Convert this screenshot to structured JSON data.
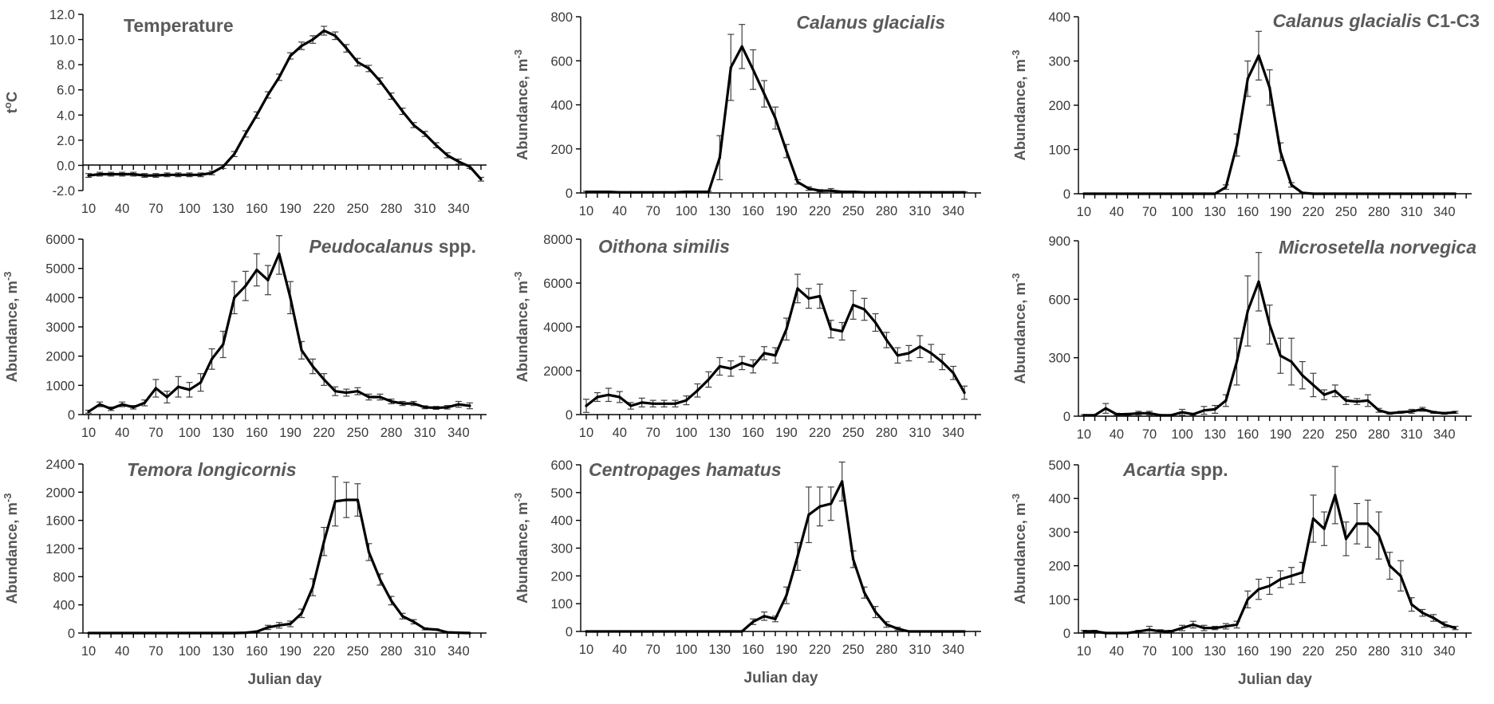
{
  "x_ticks": [
    10,
    40,
    70,
    100,
    130,
    160,
    190,
    220,
    250,
    280,
    310,
    340
  ],
  "xlabel": "Julian day",
  "chart_data": [
    {
      "type": "line",
      "title": "Temperature",
      "title_main": "Temperature",
      "title_suffix": "",
      "ylabel": "t°C",
      "ylabel_base": "t",
      "ylabel_sup": "o",
      "ylabel_rest": "C",
      "ylim": [
        -2,
        12
      ],
      "y_ticks": [
        "12.0",
        "10.0",
        "8.0",
        "6.0",
        "4.0",
        "2.0",
        "0.0",
        "-2.0"
      ],
      "y_tick_values": [
        12,
        10,
        8,
        6,
        4,
        2,
        0,
        -2
      ],
      "xlabel": "",
      "x": [
        10,
        20,
        30,
        40,
        50,
        60,
        70,
        80,
        90,
        100,
        110,
        120,
        130,
        140,
        150,
        160,
        170,
        180,
        190,
        200,
        210,
        220,
        230,
        240,
        250,
        260,
        270,
        280,
        290,
        300,
        310,
        320,
        330,
        340,
        350,
        360
      ],
      "values": [
        -0.8,
        -0.7,
        -0.7,
        -0.7,
        -0.7,
        -0.8,
        -0.8,
        -0.75,
        -0.75,
        -0.75,
        -0.75,
        -0.6,
        -0.1,
        0.9,
        2.5,
        4.0,
        5.6,
        7.0,
        8.7,
        9.5,
        10.0,
        10.7,
        10.3,
        9.3,
        8.2,
        7.7,
        6.7,
        5.5,
        4.3,
        3.2,
        2.5,
        1.6,
        0.8,
        0.3,
        -0.1,
        -1.1
      ],
      "errors": [
        0.15,
        0.15,
        0.15,
        0.15,
        0.15,
        0.15,
        0.15,
        0.15,
        0.15,
        0.15,
        0.15,
        0.15,
        0.15,
        0.2,
        0.25,
        0.25,
        0.25,
        0.25,
        0.25,
        0.3,
        0.3,
        0.35,
        0.3,
        0.3,
        0.3,
        0.25,
        0.25,
        0.25,
        0.25,
        0.2,
        0.2,
        0.2,
        0.2,
        0.2,
        0.15,
        0.15
      ],
      "zero_line": true
    },
    {
      "type": "line",
      "title": "Calanus glacialis",
      "title_main": "Calanus glacialis",
      "title_suffix": "",
      "ylabel": "Abundance, m-3",
      "ylabel_base": "Abundance, m",
      "ylabel_sup": "-3",
      "ylabel_rest": "",
      "ylim": [
        0,
        800
      ],
      "y_ticks": [
        "800",
        "600",
        "400",
        "200",
        "0"
      ],
      "y_tick_values": [
        800,
        600,
        400,
        200,
        0
      ],
      "xlabel": "",
      "x": [
        10,
        20,
        30,
        40,
        50,
        60,
        70,
        80,
        90,
        100,
        110,
        120,
        130,
        140,
        150,
        160,
        170,
        180,
        190,
        200,
        210,
        220,
        230,
        240,
        250,
        260,
        270,
        280,
        290,
        300,
        310,
        320,
        330,
        340,
        350
      ],
      "values": [
        5,
        5,
        5,
        3,
        3,
        3,
        3,
        3,
        3,
        5,
        5,
        5,
        160,
        570,
        665,
        560,
        450,
        340,
        190,
        50,
        20,
        10,
        10,
        5,
        5,
        3,
        3,
        3,
        3,
        3,
        3,
        3,
        3,
        3,
        3
      ],
      "errors": [
        3,
        3,
        3,
        2,
        2,
        2,
        2,
        2,
        2,
        3,
        3,
        3,
        100,
        150,
        100,
        90,
        60,
        50,
        30,
        10,
        8,
        5,
        10,
        3,
        3,
        2,
        2,
        2,
        2,
        2,
        2,
        2,
        2,
        2,
        2
      ]
    },
    {
      "type": "line",
      "title": "Calanus glacialis C1-C3",
      "title_main": "Calanus glacialis",
      "title_suffix": " C1-C3",
      "ylabel": "Abundance, m-3",
      "ylabel_base": "Abundance, m",
      "ylabel_sup": "-3",
      "ylabel_rest": "",
      "ylim": [
        0,
        400
      ],
      "y_ticks": [
        "400",
        "300",
        "200",
        "100",
        "0"
      ],
      "y_tick_values": [
        400,
        300,
        200,
        100,
        0
      ],
      "xlabel": "",
      "x": [
        10,
        20,
        30,
        40,
        50,
        60,
        70,
        80,
        90,
        100,
        110,
        120,
        130,
        140,
        150,
        160,
        170,
        180,
        190,
        200,
        210,
        220,
        230,
        240,
        250,
        260,
        270,
        280,
        290,
        300,
        310,
        320,
        330,
        340,
        350
      ],
      "values": [
        0,
        0,
        0,
        0,
        0,
        0,
        0,
        0,
        0,
        0,
        0,
        0,
        0,
        15,
        110,
        260,
        312,
        240,
        95,
        20,
        2,
        0,
        0,
        0,
        0,
        0,
        0,
        0,
        0,
        0,
        0,
        0,
        0,
        0,
        0
      ],
      "errors": [
        0,
        0,
        0,
        0,
        0,
        0,
        0,
        0,
        0,
        0,
        0,
        0,
        0,
        5,
        25,
        40,
        55,
        40,
        20,
        5,
        1,
        0,
        0,
        0,
        0,
        0,
        0,
        0,
        0,
        0,
        0,
        0,
        0,
        0,
        0
      ]
    },
    {
      "type": "line",
      "title": "Peudocalanus spp.",
      "title_main": "Peudocalanus",
      "title_suffix": " spp.",
      "ylabel": "Abundance, m-3",
      "ylabel_base": "Abundance, m",
      "ylabel_sup": "-3",
      "ylabel_rest": "",
      "ylim": [
        0,
        6000
      ],
      "y_ticks": [
        "6000",
        "5000",
        "4000",
        "3000",
        "2000",
        "1000",
        "0"
      ],
      "y_tick_values": [
        6000,
        5000,
        4000,
        3000,
        2000,
        1000,
        0
      ],
      "xlabel": "",
      "x": [
        10,
        20,
        30,
        40,
        50,
        60,
        70,
        80,
        90,
        100,
        110,
        120,
        130,
        140,
        150,
        160,
        170,
        180,
        190,
        200,
        210,
        220,
        230,
        240,
        250,
        260,
        270,
        280,
        290,
        300,
        310,
        320,
        330,
        340,
        350
      ],
      "values": [
        100,
        350,
        200,
        350,
        250,
        400,
        900,
        600,
        950,
        850,
        1100,
        1900,
        2400,
        4000,
        4400,
        4950,
        4600,
        5500,
        4000,
        2200,
        1650,
        1200,
        800,
        750,
        800,
        600,
        600,
        450,
        380,
        380,
        250,
        230,
        250,
        350,
        300
      ],
      "errors": [
        50,
        80,
        60,
        80,
        60,
        100,
        300,
        200,
        350,
        250,
        300,
        350,
        450,
        550,
        500,
        550,
        500,
        700,
        550,
        300,
        250,
        200,
        150,
        120,
        120,
        100,
        100,
        80,
        70,
        70,
        50,
        50,
        60,
        100,
        100
      ]
    },
    {
      "type": "line",
      "title": "Oithona similis",
      "title_main": "Oithona similis",
      "title_suffix": "",
      "ylabel": "Abundance, m-3",
      "ylabel_base": "Abundance, m",
      "ylabel_sup": "-3",
      "ylabel_rest": "",
      "ylim": [
        0,
        8000
      ],
      "y_ticks": [
        "8000",
        "6000",
        "4000",
        "2000",
        "0"
      ],
      "y_tick_values": [
        8000,
        6000,
        4000,
        2000,
        0
      ],
      "xlabel": "",
      "x": [
        10,
        20,
        30,
        40,
        50,
        60,
        70,
        80,
        90,
        100,
        110,
        120,
        130,
        140,
        150,
        160,
        170,
        180,
        190,
        200,
        210,
        220,
        230,
        240,
        250,
        260,
        270,
        280,
        290,
        300,
        310,
        320,
        330,
        340,
        350
      ],
      "values": [
        400,
        800,
        900,
        800,
        400,
        550,
        500,
        500,
        500,
        650,
        1100,
        1600,
        2200,
        2100,
        2350,
        2200,
        2800,
        2700,
        3900,
        5750,
        5300,
        5400,
        3900,
        3800,
        5000,
        4800,
        4200,
        3400,
        2700,
        2800,
        3100,
        2800,
        2400,
        1900,
        1000
      ],
      "errors": [
        300,
        200,
        300,
        250,
        150,
        200,
        150,
        150,
        150,
        200,
        300,
        350,
        400,
        350,
        300,
        300,
        300,
        350,
        500,
        650,
        450,
        550,
        400,
        400,
        650,
        500,
        400,
        350,
        350,
        350,
        500,
        400,
        350,
        300,
        300
      ]
    },
    {
      "type": "line",
      "title": "Microsetella norvegica",
      "title_main": "Microsetella norvegica",
      "title_suffix": "",
      "ylabel": "Abundance, m-3",
      "ylabel_base": "Abundance, m",
      "ylabel_sup": "-3",
      "ylabel_rest": "",
      "ylim": [
        0,
        900
      ],
      "y_ticks": [
        "900",
        "600",
        "300",
        "0"
      ],
      "y_tick_values": [
        900,
        600,
        300,
        0
      ],
      "xlabel": "",
      "x": [
        10,
        20,
        30,
        40,
        50,
        60,
        70,
        80,
        90,
        100,
        110,
        120,
        130,
        140,
        150,
        160,
        170,
        180,
        190,
        200,
        210,
        220,
        230,
        240,
        250,
        260,
        270,
        280,
        290,
        300,
        310,
        320,
        330,
        340,
        350
      ],
      "values": [
        5,
        5,
        40,
        10,
        10,
        15,
        15,
        5,
        5,
        20,
        10,
        30,
        35,
        80,
        280,
        540,
        690,
        470,
        310,
        280,
        210,
        160,
        110,
        130,
        80,
        75,
        80,
        30,
        15,
        20,
        25,
        35,
        20,
        15,
        20
      ],
      "errors": [
        3,
        3,
        25,
        5,
        5,
        10,
        10,
        3,
        3,
        15,
        5,
        20,
        20,
        30,
        120,
        180,
        150,
        100,
        90,
        120,
        70,
        60,
        25,
        30,
        20,
        15,
        30,
        10,
        5,
        5,
        10,
        10,
        5,
        5,
        5
      ]
    },
    {
      "type": "line",
      "title": "Temora longicornis",
      "title_main": "Temora longicornis",
      "title_suffix": "",
      "ylabel": "Abundance, m-3",
      "ylabel_base": "Abundance, m",
      "ylabel_sup": "-3",
      "ylabel_rest": "",
      "ylim": [
        0,
        2400
      ],
      "y_ticks": [
        "2400",
        "2000",
        "1600",
        "1200",
        "800",
        "400",
        "0"
      ],
      "y_tick_values": [
        2400,
        2000,
        1600,
        1200,
        800,
        400,
        0
      ],
      "xlabel": "Julian day",
      "x": [
        10,
        20,
        30,
        40,
        50,
        60,
        70,
        80,
        90,
        100,
        110,
        120,
        130,
        140,
        150,
        160,
        170,
        180,
        190,
        200,
        210,
        220,
        230,
        240,
        250,
        260,
        270,
        280,
        290,
        300,
        310,
        320,
        330,
        340,
        350
      ],
      "values": [
        0,
        0,
        0,
        0,
        0,
        0,
        0,
        0,
        0,
        0,
        0,
        0,
        0,
        0,
        5,
        20,
        80,
        110,
        130,
        280,
        650,
        1300,
        1870,
        1890,
        1890,
        1150,
        760,
        460,
        240,
        160,
        60,
        50,
        10,
        5,
        0
      ],
      "errors": [
        0,
        0,
        0,
        0,
        0,
        0,
        0,
        0,
        0,
        0,
        0,
        0,
        0,
        0,
        2,
        10,
        30,
        40,
        40,
        60,
        120,
        200,
        350,
        250,
        230,
        120,
        80,
        60,
        40,
        30,
        15,
        10,
        5,
        2,
        0
      ]
    },
    {
      "type": "line",
      "title": "Centropages hamatus",
      "title_main": "Centropages  hamatus",
      "title_suffix": "",
      "ylabel": "Abundance, m-3",
      "ylabel_base": "Abundance, m",
      "ylabel_sup": "-3",
      "ylabel_rest": "",
      "ylim": [
        0,
        600
      ],
      "y_ticks": [
        "600",
        "500",
        "400",
        "300",
        "200",
        "100",
        "0"
      ],
      "y_tick_values": [
        600,
        500,
        400,
        300,
        200,
        100,
        0
      ],
      "xlabel": "Julian day",
      "x": [
        10,
        20,
        30,
        40,
        50,
        60,
        70,
        80,
        90,
        100,
        110,
        120,
        130,
        140,
        150,
        160,
        170,
        180,
        190,
        200,
        210,
        220,
        230,
        240,
        250,
        260,
        270,
        280,
        290,
        300,
        310,
        320,
        330,
        340,
        350
      ],
      "values": [
        0,
        0,
        0,
        0,
        0,
        0,
        0,
        0,
        0,
        0,
        0,
        0,
        0,
        0,
        0,
        35,
        55,
        45,
        130,
        270,
        420,
        450,
        460,
        540,
        260,
        140,
        70,
        25,
        10,
        0,
        0,
        0,
        0,
        0,
        0
      ],
      "errors": [
        0,
        0,
        0,
        0,
        0,
        0,
        0,
        0,
        0,
        0,
        0,
        0,
        0,
        0,
        0,
        10,
        15,
        10,
        30,
        50,
        100,
        70,
        60,
        70,
        30,
        20,
        20,
        10,
        5,
        0,
        0,
        0,
        0,
        0,
        0
      ]
    },
    {
      "type": "line",
      "title": "Acartia spp.",
      "title_main": "Acartia",
      "title_suffix": " spp.",
      "ylabel": "Abundance, m-3",
      "ylabel_base": "Abundance, m",
      "ylabel_sup": "-3",
      "ylabel_rest": "",
      "ylim": [
        0,
        500
      ],
      "y_ticks": [
        "500",
        "400",
        "300",
        "200",
        "100",
        "0"
      ],
      "y_tick_values": [
        500,
        400,
        300,
        200,
        100,
        0
      ],
      "xlabel": "Julian day",
      "x": [
        10,
        20,
        30,
        40,
        50,
        60,
        70,
        80,
        90,
        100,
        110,
        120,
        130,
        140,
        150,
        160,
        170,
        180,
        190,
        200,
        210,
        220,
        230,
        240,
        250,
        260,
        270,
        280,
        290,
        300,
        310,
        320,
        330,
        340,
        350
      ],
      "values": [
        5,
        5,
        0,
        0,
        0,
        5,
        10,
        5,
        5,
        15,
        25,
        15,
        15,
        20,
        25,
        100,
        130,
        140,
        160,
        170,
        180,
        340,
        310,
        410,
        280,
        325,
        325,
        290,
        200,
        170,
        85,
        60,
        45,
        25,
        15
      ],
      "errors": [
        3,
        3,
        0,
        0,
        0,
        3,
        10,
        5,
        3,
        8,
        10,
        8,
        5,
        8,
        10,
        25,
        30,
        25,
        25,
        25,
        30,
        70,
        50,
        85,
        50,
        60,
        70,
        70,
        40,
        45,
        20,
        10,
        10,
        8,
        5
      ]
    }
  ]
}
